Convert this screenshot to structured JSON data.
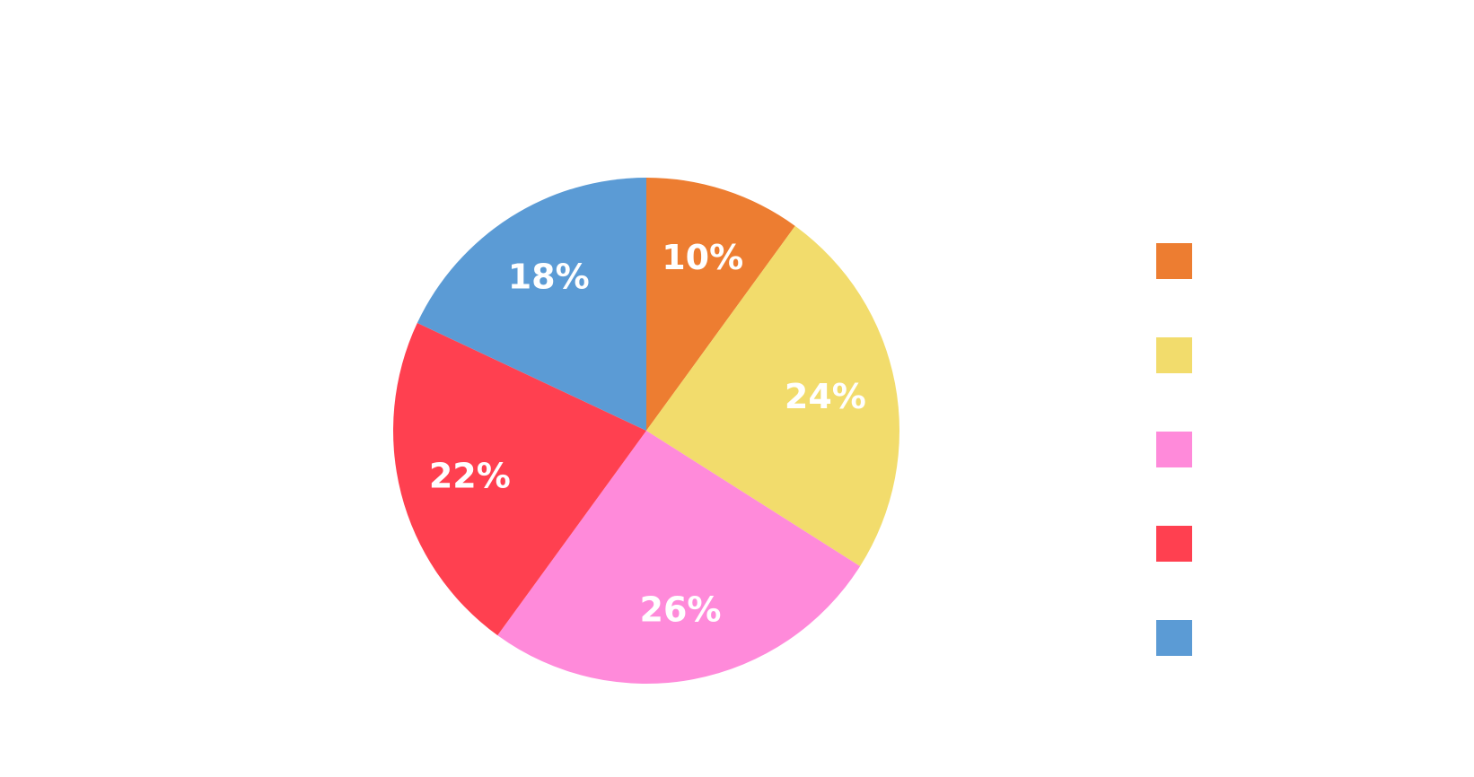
{
  "chart_data": {
    "type": "pie",
    "slices": [
      {
        "value": 10,
        "label": "10%",
        "color": "#ED7D31"
      },
      {
        "value": 24,
        "label": "24%",
        "color": "#F2DC6C"
      },
      {
        "value": 26,
        "label": "26%",
        "color": "#FF8ADA"
      },
      {
        "value": 22,
        "label": "22%",
        "color": "#FF4050"
      },
      {
        "value": 18,
        "label": "18%",
        "color": "#5B9BD5"
      }
    ],
    "start_angle_deg": 0,
    "direction": "clockwise",
    "legend_position": "right"
  }
}
